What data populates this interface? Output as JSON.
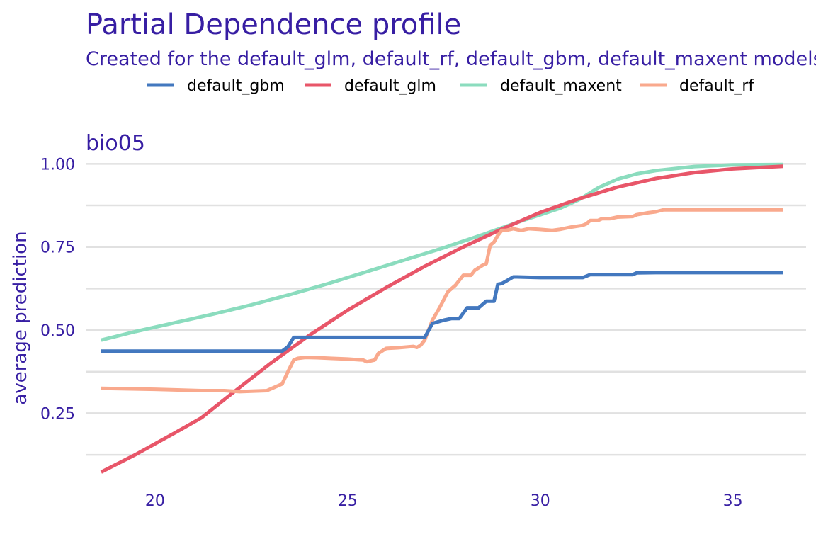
{
  "colors": {
    "text": "#371ea3",
    "grid": "#e1e1e1",
    "default_gbm": "#4378bf",
    "default_glm": "#e85669",
    "default_maxent": "#8bdcbe",
    "default_rf": "#f9a98d"
  },
  "chart_data": {
    "type": "line",
    "title": "Partial Dependence profile",
    "subtitle": "Created for the default_glm, default_rf, default_gbm, default_maxent models",
    "panel": "bio05",
    "xlabel": "",
    "ylabel": "average prediction",
    "xlim": [
      18.2,
      36.9
    ],
    "ylim": [
      0.04,
      1.02
    ],
    "x_ticks": [
      20,
      25,
      30,
      35
    ],
    "y_ticks": [
      0.25,
      0.5,
      0.75,
      1.0
    ],
    "y_tick_labels": [
      "0.25",
      "0.50",
      "0.75",
      "1.00"
    ],
    "y_minor_gridlines": [
      0.125,
      0.375,
      0.625,
      0.875
    ],
    "grid": true,
    "legend_position": "top",
    "legend": [
      "default_gbm",
      "default_glm",
      "default_maxent",
      "default_rf"
    ],
    "series": [
      {
        "name": "default_gbm",
        "x": [
          18.6,
          23.3,
          23.45,
          23.6,
          27.0,
          27.2,
          27.5,
          27.7,
          27.9,
          28.1,
          28.4,
          28.6,
          28.8,
          28.9,
          29.0,
          29.3,
          29.4,
          30.0,
          31.1,
          31.3,
          32.4,
          32.5,
          33.0,
          36.3
        ],
        "y": [
          0.437,
          0.437,
          0.45,
          0.478,
          0.478,
          0.52,
          0.53,
          0.535,
          0.535,
          0.567,
          0.567,
          0.587,
          0.587,
          0.638,
          0.64,
          0.66,
          0.66,
          0.658,
          0.658,
          0.667,
          0.667,
          0.672,
          0.673,
          0.673
        ]
      },
      {
        "name": "default_glm",
        "x": [
          18.6,
          19.5,
          20.5,
          21.2,
          22.0,
          23.0,
          24.0,
          25.0,
          26.0,
          27.0,
          28.0,
          29.0,
          30.0,
          31.0,
          32.0,
          33.0,
          34.0,
          35.0,
          36.3
        ],
        "y": [
          0.073,
          0.126,
          0.19,
          0.236,
          0.31,
          0.4,
          0.484,
          0.56,
          0.628,
          0.692,
          0.75,
          0.804,
          0.854,
          0.895,
          0.93,
          0.956,
          0.974,
          0.985,
          0.993
        ]
      },
      {
        "name": "default_maxent",
        "x": [
          18.6,
          19.5,
          20.5,
          21.5,
          22.5,
          23.5,
          24.5,
          25.5,
          26.5,
          27.5,
          28.5,
          29.5,
          30.5,
          31.0,
          31.5,
          32.0,
          32.5,
          33.0,
          34.0,
          35.0,
          36.3
        ],
        "y": [
          0.47,
          0.496,
          0.522,
          0.548,
          0.576,
          0.607,
          0.64,
          0.676,
          0.712,
          0.748,
          0.787,
          0.828,
          0.866,
          0.892,
          0.928,
          0.954,
          0.97,
          0.98,
          0.992,
          0.997,
          0.998
        ]
      },
      {
        "name": "default_rf",
        "x": [
          18.6,
          20.0,
          21.2,
          21.8,
          22.2,
          22.9,
          23.3,
          23.45,
          23.6,
          23.7,
          23.9,
          24.2,
          24.6,
          25.0,
          25.4,
          25.5,
          25.7,
          25.8,
          26.0,
          26.3,
          26.7,
          26.8,
          26.9,
          27.0,
          27.2,
          27.4,
          27.6,
          27.8,
          28.0,
          28.2,
          28.3,
          28.5,
          28.6,
          28.7,
          28.8,
          28.9,
          29.0,
          29.1,
          29.3,
          29.5,
          29.7,
          30.0,
          30.3,
          30.5,
          30.8,
          31.1,
          31.2,
          31.3,
          31.5,
          31.6,
          31.8,
          32.0,
          32.4,
          32.5,
          32.8,
          33.0,
          33.2,
          36.3
        ],
        "y": [
          0.325,
          0.322,
          0.318,
          0.318,
          0.315,
          0.318,
          0.338,
          0.375,
          0.41,
          0.415,
          0.418,
          0.417,
          0.415,
          0.413,
          0.41,
          0.405,
          0.41,
          0.43,
          0.445,
          0.447,
          0.451,
          0.448,
          0.455,
          0.47,
          0.53,
          0.57,
          0.615,
          0.635,
          0.665,
          0.665,
          0.68,
          0.695,
          0.7,
          0.755,
          0.765,
          0.785,
          0.8,
          0.8,
          0.805,
          0.8,
          0.805,
          0.803,
          0.8,
          0.803,
          0.81,
          0.815,
          0.82,
          0.83,
          0.83,
          0.835,
          0.835,
          0.84,
          0.842,
          0.847,
          0.853,
          0.856,
          0.862,
          0.862
        ]
      }
    ]
  }
}
